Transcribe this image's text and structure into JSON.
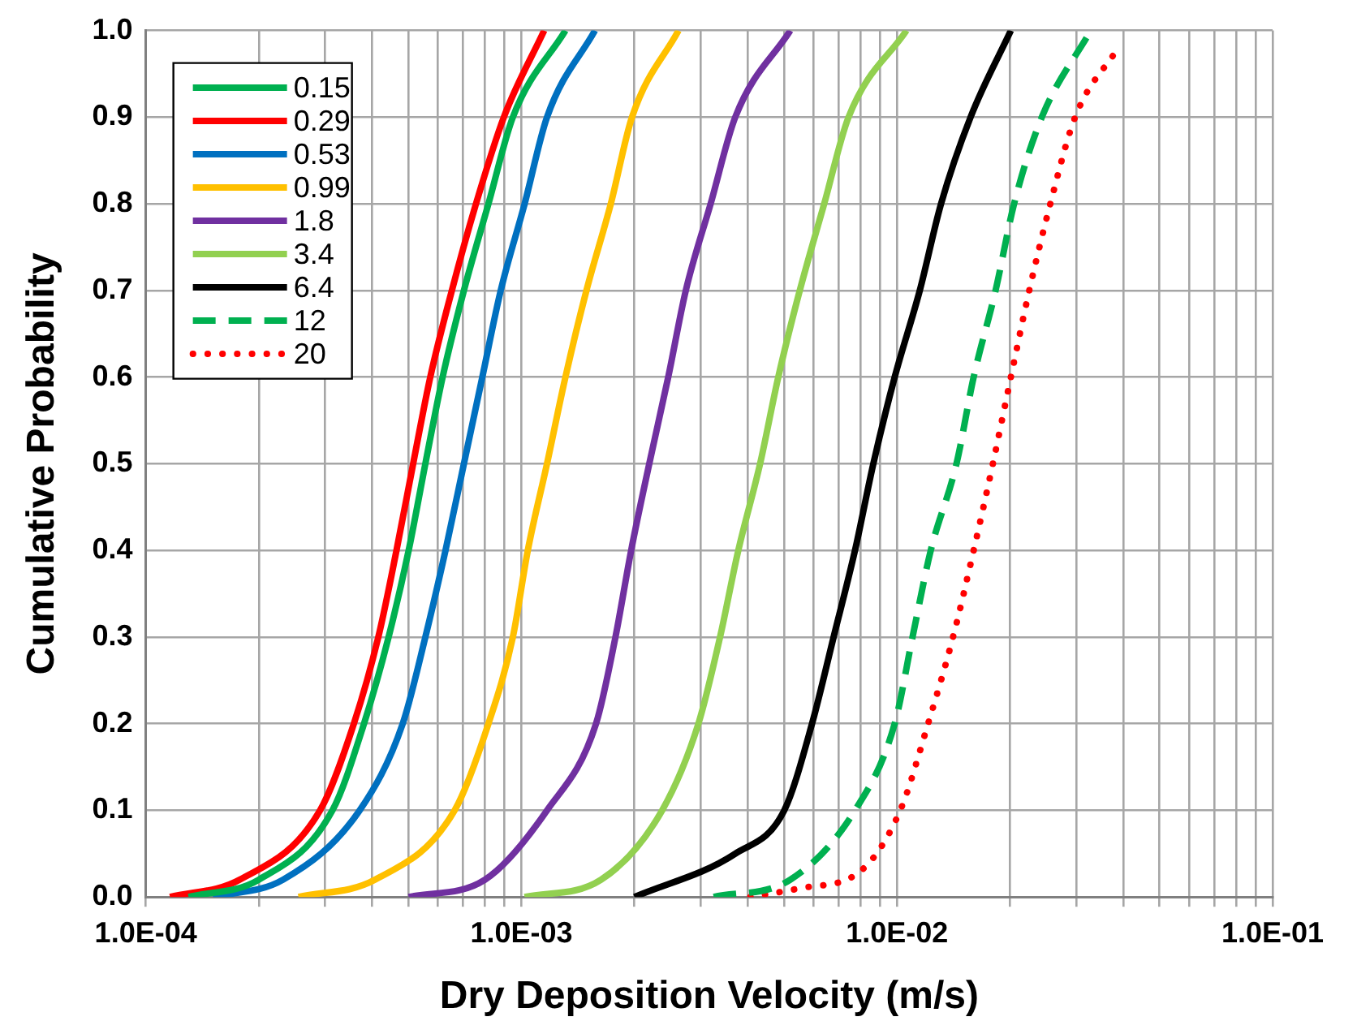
{
  "chart_data": {
    "type": "line",
    "xlabel": "Dry Deposition Velocity (m/s)",
    "ylabel": "Cumulative Probability",
    "log": "x",
    "grid": true,
    "legend": "top left",
    "marker": "none",
    "xlim": [
      0.0001,
      0.1
    ],
    "xticks": [
      {
        "value": 0.0001,
        "label": "1.0E-04"
      },
      {
        "value": 0.0002,
        "label": null
      },
      {
        "value": 0.0003,
        "label": null
      },
      {
        "value": 0.0004,
        "label": null
      },
      {
        "value": 0.0005,
        "label": null
      },
      {
        "value": 0.0006,
        "label": null
      },
      {
        "value": 0.0007,
        "label": null
      },
      {
        "value": 0.0008,
        "label": null
      },
      {
        "value": 0.0009,
        "label": null
      },
      {
        "value": 0.001,
        "label": "1.0E-03"
      },
      {
        "value": 0.002,
        "label": null
      },
      {
        "value": 0.003,
        "label": null
      },
      {
        "value": 0.004,
        "label": null
      },
      {
        "value": 0.005,
        "label": null
      },
      {
        "value": 0.006,
        "label": null
      },
      {
        "value": 0.007,
        "label": null
      },
      {
        "value": 0.008,
        "label": null
      },
      {
        "value": 0.009,
        "label": null
      },
      {
        "value": 0.01,
        "label": "1.0E-02"
      },
      {
        "value": 0.02,
        "label": null
      },
      {
        "value": 0.03,
        "label": null
      },
      {
        "value": 0.04,
        "label": null
      },
      {
        "value": 0.05,
        "label": null
      },
      {
        "value": 0.06,
        "label": null
      },
      {
        "value": 0.07,
        "label": null
      },
      {
        "value": 0.08,
        "label": null
      },
      {
        "value": 0.09,
        "label": null
      },
      {
        "value": 0.1,
        "label": "1.0E-01"
      }
    ],
    "ylim": [
      0,
      1
    ],
    "yticks": [
      {
        "value": 0,
        "label": "0.0"
      },
      {
        "value": 0.1,
        "label": "0.1"
      },
      {
        "value": 0.2,
        "label": "0.2"
      },
      {
        "value": 0.3,
        "label": "0.3"
      },
      {
        "value": 0.4,
        "label": "0.4"
      },
      {
        "value": 0.5,
        "label": "0.5"
      },
      {
        "value": 0.6,
        "label": "0.6"
      },
      {
        "value": 0.7,
        "label": "0.7"
      },
      {
        "value": 0.8,
        "label": "0.8"
      },
      {
        "value": 0.9,
        "label": "0.9"
      },
      {
        "value": 1,
        "label": "1.0"
      }
    ],
    "series": [
      {
        "name": "0.15",
        "color": "#00b050",
        "line_style": "solid",
        "x": [
          0.00013,
          0.0002,
          0.000314,
          0.000381,
          0.000443,
          0.000501,
          0.000555,
          0.000617,
          0.000703,
          0.000817,
          0.000949,
          0.00131
        ],
        "values": [
          0,
          0.02,
          0.1,
          0.2,
          0.3,
          0.4,
          0.5,
          0.6,
          0.7,
          0.8,
          0.9,
          1
        ]
      },
      {
        "name": "0.29",
        "color": "#ff0000",
        "line_style": "solid",
        "x": [
          0.000116,
          0.000178,
          0.000291,
          0.000358,
          0.000416,
          0.000465,
          0.000515,
          0.000572,
          0.000653,
          0.000757,
          0.000898,
          0.00115
        ],
        "values": [
          0,
          0.02,
          0.1,
          0.2,
          0.3,
          0.4,
          0.5,
          0.6,
          0.7,
          0.8,
          0.9,
          1
        ]
      },
      {
        "name": "0.53",
        "color": "#0070c0",
        "line_style": "solid",
        "x": [
          0.000151,
          0.000232,
          0.000371,
          0.000483,
          0.000555,
          0.000628,
          0.000703,
          0.000787,
          0.000881,
          0.00102,
          0.00117,
          0.00157
        ],
        "values": [
          0,
          0.02,
          0.1,
          0.2,
          0.3,
          0.4,
          0.5,
          0.6,
          0.7,
          0.8,
          0.9,
          1
        ]
      },
      {
        "name": "0.99",
        "color": "#ffc000",
        "line_style": "solid",
        "x": [
          0.000255,
          0.000408,
          0.000664,
          0.000817,
          0.000949,
          0.00104,
          0.00117,
          0.00131,
          0.00149,
          0.00173,
          0.00197,
          0.00262
        ],
        "values": [
          0,
          0.02,
          0.1,
          0.2,
          0.3,
          0.4,
          0.5,
          0.6,
          0.7,
          0.8,
          0.9,
          1
        ]
      },
      {
        "name": "1.8",
        "color": "#7030a0",
        "line_style": "solid",
        "x": [
          0.000501,
          0.0008,
          0.00117,
          0.00158,
          0.00178,
          0.00196,
          0.00219,
          0.00246,
          0.00274,
          0.00319,
          0.00371,
          0.0052
        ],
        "values": [
          0,
          0.02,
          0.1,
          0.2,
          0.3,
          0.4,
          0.5,
          0.6,
          0.7,
          0.8,
          0.9,
          1
        ]
      },
      {
        "name": "3.4",
        "color": "#92d050",
        "line_style": "solid",
        "x": [
          0.00102,
          0.00163,
          0.00237,
          0.00296,
          0.00338,
          0.00378,
          0.00432,
          0.00483,
          0.00551,
          0.0064,
          0.00743,
          0.0106
        ],
        "values": [
          0,
          0.02,
          0.1,
          0.2,
          0.3,
          0.4,
          0.5,
          0.6,
          0.7,
          0.8,
          0.9,
          1
        ]
      },
      {
        "name": "6.4",
        "color": "#000000",
        "line_style": "solid",
        "x": [
          0.002,
          0.00371,
          0.00501,
          0.00594,
          0.00678,
          0.00773,
          0.00865,
          0.00986,
          0.0115,
          0.0131,
          0.0157,
          0.0201
        ],
        "values": [
          0,
          0.05,
          0.1,
          0.2,
          0.3,
          0.4,
          0.5,
          0.6,
          0.7,
          0.8,
          0.9,
          1
        ]
      },
      {
        "name": "12",
        "color": "#00b050",
        "line_style": "dashed",
        "x": [
          0.00325,
          0.0052,
          0.00773,
          0.00986,
          0.011,
          0.0123,
          0.0144,
          0.016,
          0.0183,
          0.0205,
          0.0243,
          0.0328
        ],
        "values": [
          0,
          0.02,
          0.1,
          0.2,
          0.3,
          0.4,
          0.5,
          0.6,
          0.7,
          0.8,
          0.9,
          1
        ]
      },
      {
        "name": "20",
        "color": "#ff0000",
        "line_style": "dotted",
        "x": [
          0.00407,
          0.00551,
          0.008,
          0.0102,
          0.0121,
          0.0141,
          0.016,
          0.018,
          0.0201,
          0.0225,
          0.0256,
          0.0298,
          0.0388
        ],
        "values": [
          0,
          0.01,
          0.03,
          0.1,
          0.2,
          0.3,
          0.4,
          0.5,
          0.6,
          0.7,
          0.8,
          0.9,
          0.98
        ]
      }
    ]
  }
}
